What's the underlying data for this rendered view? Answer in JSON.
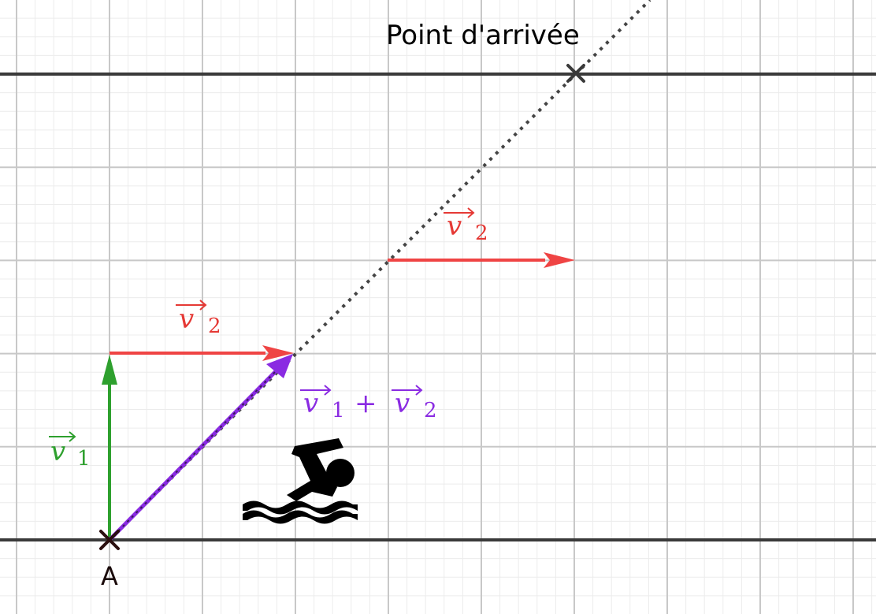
{
  "diagram": {
    "arrival_label": "Point d'arrivée",
    "start_label": "A",
    "v1": {
      "symbol": "v",
      "subscript": "1",
      "color": "#2ea02e"
    },
    "v2_lower": {
      "symbol": "v",
      "subscript": "2",
      "color": "#e53935"
    },
    "v2_upper": {
      "symbol": "v",
      "subscript": "2",
      "color": "#e53935"
    },
    "sum": {
      "sym1": "v",
      "sub1": "1",
      "plus": "+",
      "sym2": "v",
      "sub2": "2",
      "color": "#8a2be2"
    },
    "swimmer_icon": "swimmer-icon",
    "colors": {
      "bank_line": "#3a3a3a",
      "trajectory": "#3a3a3a",
      "grid_major": "#c8c8c8",
      "grid_minor": "#ececec",
      "marker": "#2b0f0f"
    }
  }
}
